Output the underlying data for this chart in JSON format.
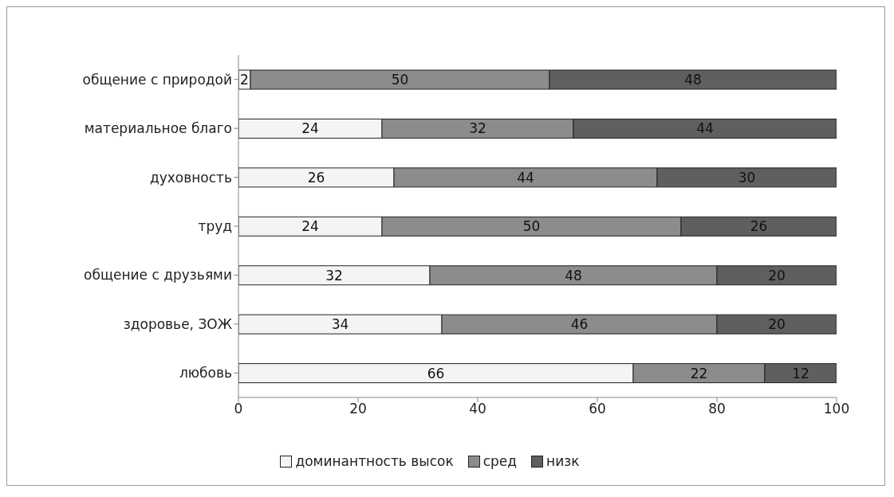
{
  "chart_data": {
    "type": "bar",
    "orientation": "horizontal",
    "stacked": true,
    "data_labels": true,
    "legend": "bottom",
    "grid": false,
    "categories": [
      "общение с природой",
      "материальное благо",
      "духовность",
      "труд",
      "общение с друзьями",
      "здоровье, ЗОЖ",
      "любовь"
    ],
    "series": [
      {
        "name": "доминантность высок",
        "color": "#f4f4f4",
        "values": [
          2,
          24,
          26,
          24,
          32,
          34,
          66
        ]
      },
      {
        "name": "сред",
        "color": "#8c8c8c",
        "values": [
          50,
          32,
          44,
          50,
          48,
          46,
          22
        ]
      },
      {
        "name": "низк",
        "color": "#5f5f5f",
        "values": [
          48,
          44,
          30,
          26,
          20,
          20,
          12
        ]
      }
    ],
    "xlim": [
      0,
      100
    ],
    "xticks": [
      0,
      20,
      40,
      60,
      80,
      100
    ]
  }
}
